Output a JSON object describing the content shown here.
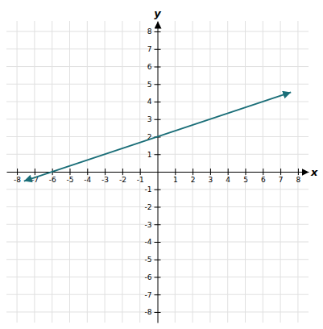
{
  "chart_data": {
    "type": "line",
    "x": [
      -7.6,
      7.6
    ],
    "values": [
      -0.5333333333333332,
      4.533333333333333
    ],
    "color": "#1a6e78",
    "x_label": "x",
    "y_label": "y",
    "xlim": [
      -8.6,
      8.6
    ],
    "ylim": [
      -8.6,
      8.6
    ],
    "xticks": [
      -8,
      -7,
      -6,
      -5,
      -4,
      -3,
      -2,
      -1,
      1,
      2,
      3,
      4,
      5,
      6,
      7,
      8
    ],
    "yticks": [
      -8,
      -7,
      -6,
      -5,
      -4,
      -3,
      -2,
      -1,
      1,
      2,
      3,
      4,
      5,
      6,
      7,
      8
    ],
    "grid": true
  }
}
